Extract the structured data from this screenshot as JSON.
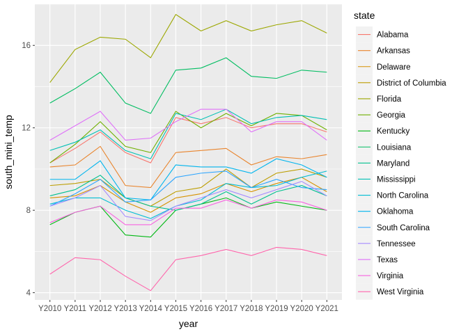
{
  "chart_data": {
    "type": "line",
    "xlabel": "year",
    "ylabel": "south_mini_temp",
    "legend_title": "state",
    "legend_position": "right",
    "grid": true,
    "ylim": [
      3.65,
      18.0
    ],
    "yticks": [
      4,
      8,
      12,
      16
    ],
    "categories": [
      "Y2010",
      "Y2011",
      "Y2012",
      "Y2013",
      "Y2014",
      "Y2015",
      "Y2016",
      "Y2017",
      "Y2018",
      "Y2019",
      "Y2020",
      "Y2021"
    ],
    "series": [
      {
        "name": "Alabama",
        "color": "#F8766D",
        "values": [
          10.3,
          11.0,
          11.8,
          10.8,
          10.3,
          12.5,
          12.2,
          12.5,
          12.0,
          12.2,
          12.2,
          11.8
        ]
      },
      {
        "name": "Arkansas",
        "color": "#E9842C",
        "values": [
          10.1,
          10.2,
          11.1,
          9.2,
          9.1,
          10.8,
          10.9,
          11.0,
          10.2,
          10.6,
          10.5,
          10.7
        ]
      },
      {
        "name": "Delaware",
        "color": "#D69100",
        "values": [
          8.6,
          8.7,
          9.2,
          8.4,
          7.9,
          8.6,
          8.8,
          9.3,
          8.9,
          9.3,
          9.6,
          8.9
        ]
      },
      {
        "name": "District of Columbia",
        "color": "#BC9D00",
        "values": [
          9.2,
          9.3,
          9.5,
          8.6,
          8.2,
          8.9,
          9.1,
          10.0,
          9.1,
          9.8,
          10.0,
          9.6
        ]
      },
      {
        "name": "Florida",
        "color": "#9CA700",
        "values": [
          14.2,
          15.8,
          16.4,
          16.3,
          15.4,
          17.5,
          16.7,
          17.2,
          16.7,
          17.0,
          17.2,
          16.6
        ]
      },
      {
        "name": "Georgia",
        "color": "#6FB000",
        "values": [
          10.3,
          11.2,
          12.3,
          11.1,
          10.8,
          12.8,
          12.0,
          12.7,
          12.1,
          12.7,
          12.6,
          11.9
        ]
      },
      {
        "name": "Kentucky",
        "color": "#00B813",
        "values": [
          7.3,
          7.9,
          8.2,
          6.8,
          6.7,
          8.0,
          8.3,
          8.6,
          8.1,
          8.4,
          8.2,
          8.0
        ]
      },
      {
        "name": "Louisiana",
        "color": "#00BD61",
        "values": [
          13.2,
          13.9,
          14.7,
          13.2,
          12.7,
          14.8,
          14.9,
          15.4,
          14.5,
          14.4,
          14.8,
          14.7
        ]
      },
      {
        "name": "Maryland",
        "color": "#00C08E",
        "values": [
          8.7,
          9.0,
          9.7,
          8.6,
          8.2,
          8.0,
          8.3,
          8.9,
          8.3,
          8.9,
          9.2,
          8.7
        ]
      },
      {
        "name": "Mississippi",
        "color": "#00C0B4",
        "values": [
          10.9,
          11.3,
          11.9,
          10.9,
          10.5,
          12.7,
          12.4,
          12.9,
          12.2,
          12.5,
          12.6,
          12.4
        ]
      },
      {
        "name": "North Carolina",
        "color": "#00BDD4",
        "values": [
          8.3,
          8.6,
          8.6,
          8.0,
          7.6,
          8.2,
          8.5,
          9.3,
          9.1,
          9.2,
          9.6,
          9.9
        ]
      },
      {
        "name": "Oklahoma",
        "color": "#00B5EE",
        "values": [
          9.5,
          9.5,
          10.4,
          8.6,
          8.5,
          10.2,
          10.1,
          10.1,
          9.8,
          10.5,
          10.2,
          9.6
        ]
      },
      {
        "name": "South Carolina",
        "color": "#2AA4FF",
        "values": [
          8.2,
          8.8,
          9.5,
          8.4,
          8.5,
          9.6,
          9.8,
          9.9,
          9.1,
          9.5,
          9.1,
          9.0
        ]
      },
      {
        "name": "Tennessee",
        "color": "#A58AFF",
        "values": [
          8.2,
          8.6,
          9.2,
          7.7,
          7.5,
          8.2,
          8.6,
          9.0,
          8.6,
          9.0,
          9.4,
          8.7
        ]
      },
      {
        "name": "Texas",
        "color": "#DF70F8",
        "values": [
          11.4,
          12.1,
          12.8,
          11.4,
          11.5,
          12.3,
          12.9,
          12.9,
          11.8,
          12.3,
          12.3,
          11.4
        ]
      },
      {
        "name": "Virginia",
        "color": "#F763E0",
        "values": [
          7.4,
          7.9,
          8.2,
          7.3,
          7.3,
          8.1,
          8.1,
          8.5,
          8.1,
          8.5,
          8.4,
          8.0
        ]
      },
      {
        "name": "West Virginia",
        "color": "#FF65AC",
        "values": [
          4.9,
          5.7,
          5.6,
          4.8,
          4.1,
          5.6,
          5.8,
          6.1,
          5.8,
          6.2,
          6.1,
          5.8
        ]
      }
    ]
  }
}
